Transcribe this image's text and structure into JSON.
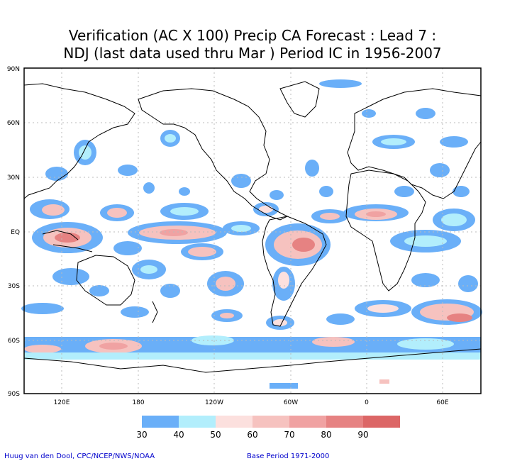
{
  "title_line1": "Verification (AC X 100) Precip CA Forecast : Lead 7 :",
  "title_line2": "NDJ (last data used thru Mar ) Period IC in 1956-2007",
  "lat_labels": [
    "90N",
    "60N",
    "30N",
    "EQ",
    "30S",
    "60S",
    "90S"
  ],
  "lon_labels": [
    "120E",
    "180",
    "120W",
    "60W",
    "0",
    "60E"
  ],
  "colorbar": {
    "ticks": [
      "30",
      "40",
      "50",
      "60",
      "70",
      "80",
      "90"
    ],
    "colors": [
      "#6aaff8",
      "#b2eefc",
      "#ffffff",
      "#fce0de",
      "#f6c2bf",
      "#f0a2a2",
      "#e68282",
      "#dc6666"
    ]
  },
  "footer": {
    "credit": "Huug van den Dool, CPC/NCEP/NWS/NOAA",
    "base_period": "Base Period 1971-2000"
  },
  "colors": {
    "frame": "#000000",
    "grid": "#bbbbbb",
    "coast": "#000000",
    "footer_text": "#0000cc"
  }
}
